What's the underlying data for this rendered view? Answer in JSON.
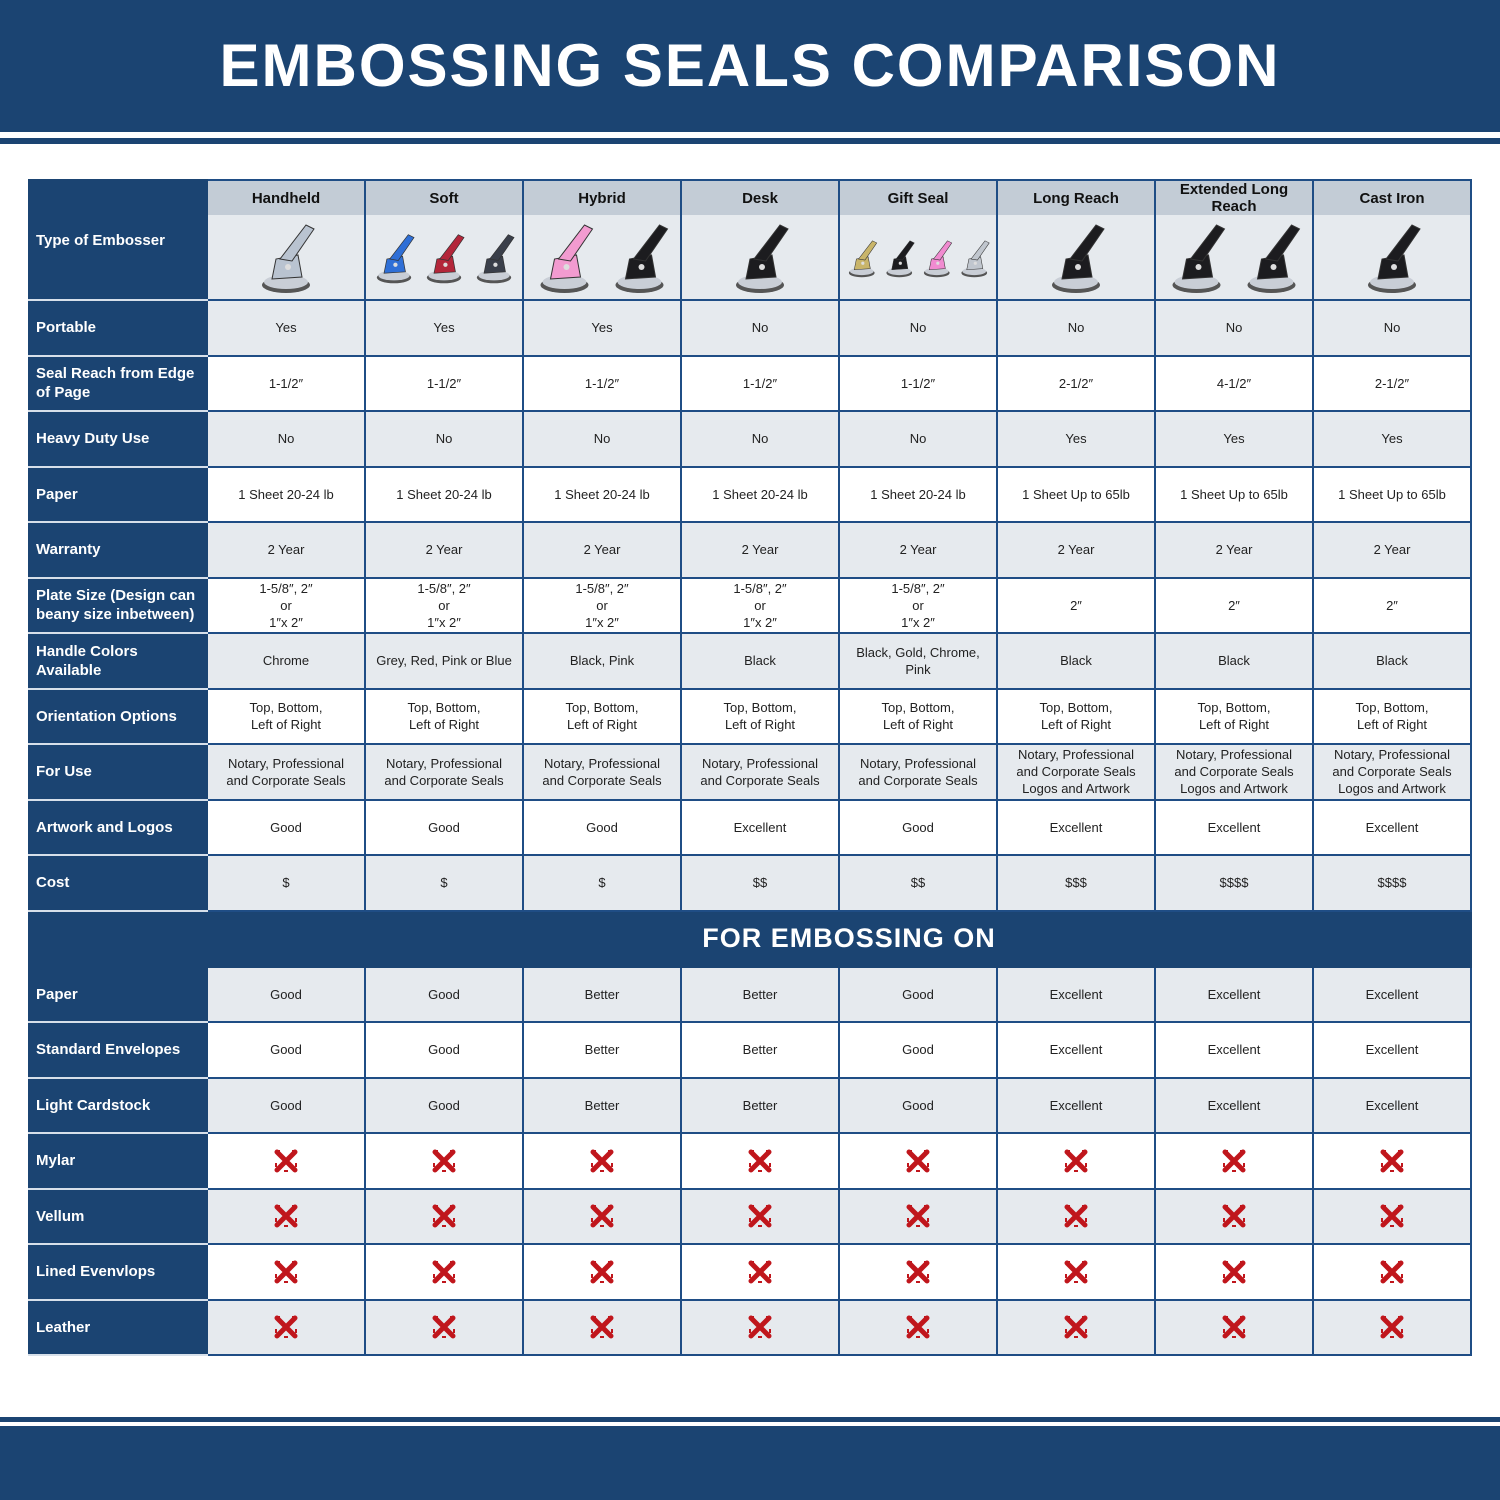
{
  "title": "EMBOSSING SEALS COMPARISON",
  "colors": {
    "brand_blue": "#1b4472",
    "header_grey": "#c3ccd6",
    "row_grey": "#e6eaee",
    "x_red": "#c0161c"
  },
  "type_label": "Type of Embosser",
  "columns": [
    {
      "name": "Handheld",
      "image_colors": [
        "#b9c3d0"
      ]
    },
    {
      "name": "Soft",
      "image_colors": [
        "#2f6fd6",
        "#b3263a",
        "#3a3f4a"
      ]
    },
    {
      "name": "Hybrid",
      "image_colors": [
        "#f29bd0",
        "#1c1c1f"
      ]
    },
    {
      "name": "Desk",
      "image_colors": [
        "#1c1c1f"
      ]
    },
    {
      "name": "Gift Seal",
      "image_colors": [
        "#c9b56a",
        "#1c1c1f",
        "#f08bd0",
        "#c0c6ce"
      ]
    },
    {
      "name": "Long Reach",
      "image_colors": [
        "#1c1c1f"
      ]
    },
    {
      "name": "Extended Long Reach",
      "image_colors": [
        "#1c1c1f",
        "#1c1c1f"
      ]
    },
    {
      "name": "Cast Iron",
      "image_colors": [
        "#1c1c1f"
      ]
    }
  ],
  "rows": [
    {
      "label": "Portable",
      "values": [
        "Yes",
        "Yes",
        "Yes",
        "No",
        "No",
        "No",
        "No",
        "No"
      ]
    },
    {
      "label": "Seal Reach from Edge of Page",
      "values": [
        "1-1/2″",
        "1-1/2″",
        "1-1/2″",
        "1-1/2″",
        "1-1/2″",
        "2-1/2″",
        "4-1/2″",
        "2-1/2″"
      ]
    },
    {
      "label": "Heavy Duty Use",
      "values": [
        "No",
        "No",
        "No",
        "No",
        "No",
        "Yes",
        "Yes",
        "Yes"
      ]
    },
    {
      "label": "Paper",
      "values": [
        "1 Sheet 20-24 lb",
        "1 Sheet 20-24 lb",
        "1 Sheet 20-24 lb",
        "1 Sheet 20-24 lb",
        "1 Sheet 20-24 lb",
        "1 Sheet Up to 65lb",
        "1 Sheet Up to 65lb",
        "1 Sheet Up to 65lb"
      ]
    },
    {
      "label": "Warranty",
      "values": [
        "2 Year",
        "2 Year",
        "2 Year",
        "2 Year",
        "2 Year",
        "2 Year",
        "2 Year",
        "2 Year"
      ]
    },
    {
      "label": "Plate Size (Design can beany size inbetween)",
      "values": [
        "1-5/8″, 2″\nor\n1″x 2″",
        "1-5/8″, 2″\nor\n1″x 2″",
        "1-5/8″, 2″\nor\n1″x 2″",
        "1-5/8″, 2″\nor\n1″x 2″",
        "1-5/8″, 2″\nor\n1″x 2″",
        "2″",
        "2″",
        "2″"
      ]
    },
    {
      "label": "Handle Colors Available",
      "values": [
        "Chrome",
        "Grey, Red, Pink or Blue",
        "Black, Pink",
        "Black",
        "Black, Gold, Chrome, Pink",
        "Black",
        "Black",
        "Black"
      ]
    },
    {
      "label": "Orientation Options",
      "values": [
        "Top, Bottom,\nLeft of Right",
        "Top, Bottom,\nLeft of Right",
        "Top, Bottom,\nLeft of Right",
        "Top, Bottom,\nLeft of Right",
        "Top, Bottom,\nLeft of Right",
        "Top, Bottom,\nLeft of Right",
        "Top, Bottom,\nLeft of Right",
        "Top, Bottom,\nLeft of Right"
      ]
    },
    {
      "label": "For Use",
      "values": [
        "Notary, Professional\nand Corporate Seals",
        "Notary, Professional\nand Corporate Seals",
        "Notary, Professional\nand Corporate Seals",
        "Notary, Professional\nand Corporate Seals",
        "Notary, Professional\nand Corporate Seals",
        "Notary, Professional\nand Corporate Seals\nLogos and Artwork",
        "Notary, Professional\nand Corporate Seals\nLogos and Artwork",
        "Notary, Professional\nand Corporate Seals\nLogos and Artwork"
      ]
    },
    {
      "label": "Artwork and Logos",
      "values": [
        "Good",
        "Good",
        "Good",
        "Excellent",
        "Good",
        "Excellent",
        "Excellent",
        "Excellent"
      ]
    },
    {
      "label": "Cost",
      "values": [
        "$",
        "$",
        "$",
        "$$",
        "$$",
        "$$$",
        "$$$$",
        "$$$$"
      ]
    }
  ],
  "section_title": "FOR EMBOSSING ON",
  "embossing_rows": [
    {
      "label": "Paper",
      "values": [
        "Good",
        "Good",
        "Better",
        "Better",
        "Good",
        "Excellent",
        "Excellent",
        "Excellent"
      ]
    },
    {
      "label": "Standard Envelopes",
      "values": [
        "Good",
        "Good",
        "Better",
        "Better",
        "Good",
        "Excellent",
        "Excellent",
        "Excellent"
      ]
    },
    {
      "label": "Light Cardstock",
      "values": [
        "Good",
        "Good",
        "Better",
        "Better",
        "Good",
        "Excellent",
        "Excellent",
        "Excellent"
      ]
    },
    {
      "label": "Mylar",
      "values": [
        false,
        false,
        false,
        false,
        false,
        false,
        false,
        false
      ]
    },
    {
      "label": "Vellum",
      "values": [
        false,
        false,
        false,
        false,
        false,
        false,
        false,
        false
      ]
    },
    {
      "label": "Lined Evenvlops",
      "values": [
        false,
        false,
        false,
        false,
        false,
        false,
        false,
        false
      ]
    },
    {
      "label": "Leather",
      "values": [
        false,
        false,
        false,
        false,
        false,
        false,
        false,
        false
      ]
    }
  ],
  "not_supported_icon": "red-x-mark-icon"
}
